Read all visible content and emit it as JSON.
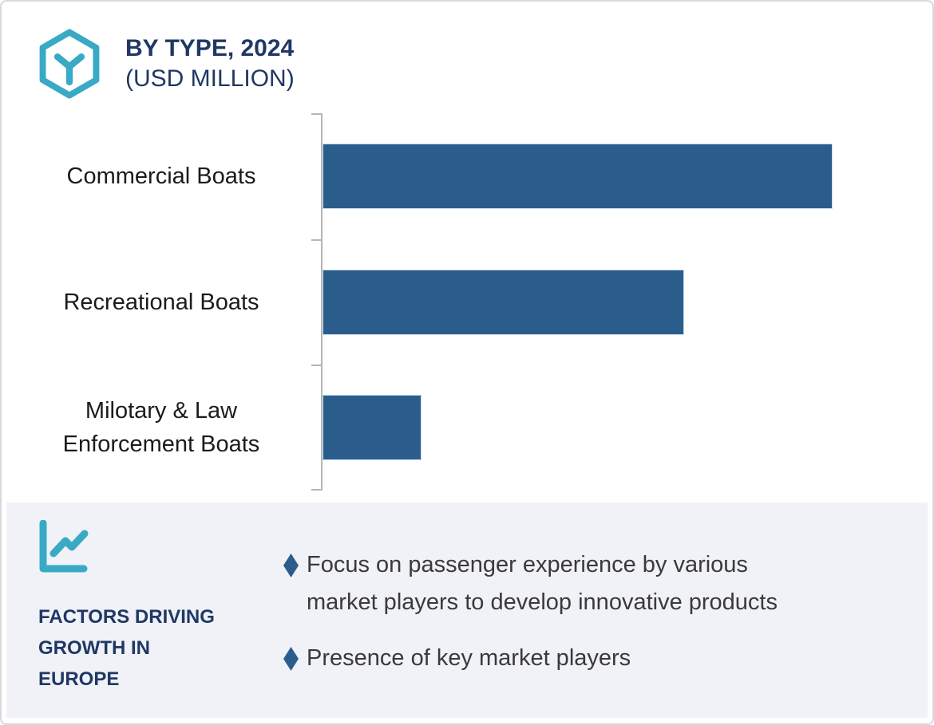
{
  "header": {
    "title_line1": "BY TYPE, 2024",
    "title_line2": "(USD MILLION)",
    "icon": "hexagon-box-icon"
  },
  "chart_data": {
    "type": "bar",
    "orientation": "horizontal",
    "title": "BY TYPE, 2024 (USD MILLION)",
    "categories": [
      "Commercial Boats",
      "Recreational Boats",
      "Milotary & Law Enforcement Boats"
    ],
    "values": [
      642,
      455,
      125
    ],
    "values_note": "no numeric data labels or axis ticks shown in image; values are pixel-proportional estimates (relative units)",
    "value_labels_shown": false,
    "xlabel": "",
    "ylabel": "",
    "xlim": [
      0,
      758
    ],
    "grid": false,
    "legend": false,
    "bar_color": "#2b5d8c",
    "axis_color": "#b5b5b5"
  },
  "factors_panel": {
    "icon": "line-chart-icon",
    "heading": "FACTORS DRIVING GROWTH IN EUROPE",
    "heading_lines": [
      "FACTORS DRIVING",
      "GROWTH IN",
      "EUROPE"
    ],
    "bullet_icon": "diamond",
    "bullets": [
      {
        "text": "Focus on passenger experience by various market players to develop innovative products",
        "lines": [
          "Focus on passenger experience by various",
          "market players to develop innovative products"
        ]
      },
      {
        "text": "Presence of key market players",
        "lines": [
          "Presence of key market players"
        ]
      }
    ]
  },
  "colors": {
    "navy": "#1f3864",
    "teal": "#3aa9c6",
    "bar_blue": "#2b5d8c",
    "panel_background": "#f1f2f7",
    "axis_gray": "#b5b5b5",
    "bullet_text": "#3a3a3a",
    "category_label_text": "#1b1b1b"
  }
}
